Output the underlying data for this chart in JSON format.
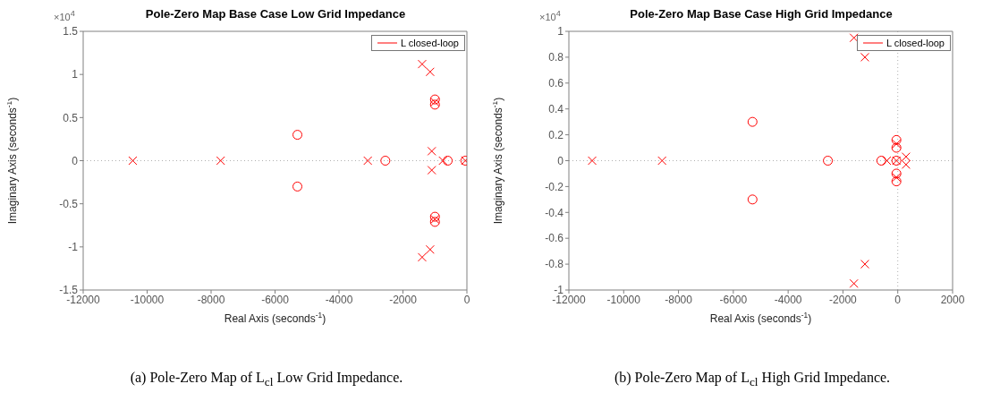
{
  "chart_data": [
    {
      "type": "scatter",
      "title": "Pole-Zero Map Base Case Low Grid Impedance",
      "xlabel": "Real Axis (seconds$^{-1}$)",
      "ylabel": "Imaginary Axis (seconds$^{-1}$)",
      "annotations": [
        "×10$^{4}$",
        "(a) Pole-Zero Map of L$_{cl}$ Low Grid Impedance."
      ],
      "xlim": [
        -12000,
        0
      ],
      "ylim": [
        -1.5,
        1.5
      ],
      "xticks": [
        -12000,
        -10000,
        -8000,
        -6000,
        -4000,
        -2000,
        0
      ],
      "yticks": [
        -1.5,
        -1,
        -0.5,
        0,
        0.5,
        1,
        1.5
      ],
      "grid": false,
      "legend": "top right",
      "ref_lines": [
        {
          "axis": "y",
          "value": 0,
          "color": "#b0b0b0",
          "line_style": "dotted"
        }
      ],
      "series": [
        {
          "name": "L closed-loop",
          "color": "#ff0000",
          "marker": "cross",
          "x": [
            -10450,
            -7700,
            -3100,
            -1400,
            -1400,
            -1150,
            -1150,
            -1100,
            -1100,
            -1000,
            -1000,
            -750,
            -50
          ],
          "values": [
            0,
            0,
            0,
            1.12,
            -1.12,
            1.03,
            -1.03,
            0.11,
            -0.11,
            0.68,
            -0.68,
            0,
            0
          ]
        },
        {
          "color": "#ff0000",
          "marker": "circle",
          "x": [
            -5300,
            -5300,
            -2550,
            -1000,
            -1000,
            -1000,
            -1000,
            -600,
            -50
          ],
          "values": [
            0.3,
            -0.3,
            0,
            0.71,
            0.65,
            -0.65,
            -0.71,
            0,
            0
          ]
        }
      ]
    },
    {
      "type": "scatter",
      "title": "Pole-Zero Map Base Case High Grid Impedance",
      "xlabel": "Real Axis (seconds$^{-1}$)",
      "ylabel": "Imaginary Axis (seconds$^{-1}$)",
      "annotations": [
        "×10$^{4}$",
        "(b) Pole-Zero Map of L$_{cl}$ High Grid Impedance."
      ],
      "xlim": [
        -12000,
        2000
      ],
      "ylim": [
        -1,
        1
      ],
      "xticks": [
        -12000,
        -10000,
        -8000,
        -6000,
        -4000,
        -2000,
        0,
        2000
      ],
      "yticks": [
        -1,
        -0.8,
        -0.6,
        -0.4,
        -0.2,
        0,
        0.2,
        0.4,
        0.6,
        0.8,
        1
      ],
      "grid": false,
      "legend": "top right",
      "ref_lines": [
        {
          "axis": "y",
          "value": 0,
          "color": "#b0b0b0",
          "line_style": "dotted"
        },
        {
          "axis": "x",
          "value": 0,
          "color": "#b0b0b0",
          "line_style": "dotted"
        }
      ],
      "series": [
        {
          "name": "L closed-loop",
          "color": "#ff0000",
          "marker": "cross",
          "x": [
            -11150,
            -8600,
            -1600,
            -1600,
            -1200,
            -1200,
            -400,
            -50,
            -50,
            -50,
            300,
            300
          ],
          "values": [
            0,
            0,
            0.95,
            -0.95,
            0.8,
            -0.8,
            0,
            0,
            0.13,
            -0.13,
            0.03,
            -0.03
          ]
        },
        {
          "color": "#ff0000",
          "marker": "circle",
          "x": [
            -5300,
            -5300,
            -2550,
            -600,
            -50,
            -50,
            -50,
            -50,
            -50
          ],
          "values": [
            0.3,
            -0.3,
            0,
            0,
            0,
            0.16,
            0.1,
            -0.1,
            -0.16
          ]
        }
      ]
    }
  ]
}
